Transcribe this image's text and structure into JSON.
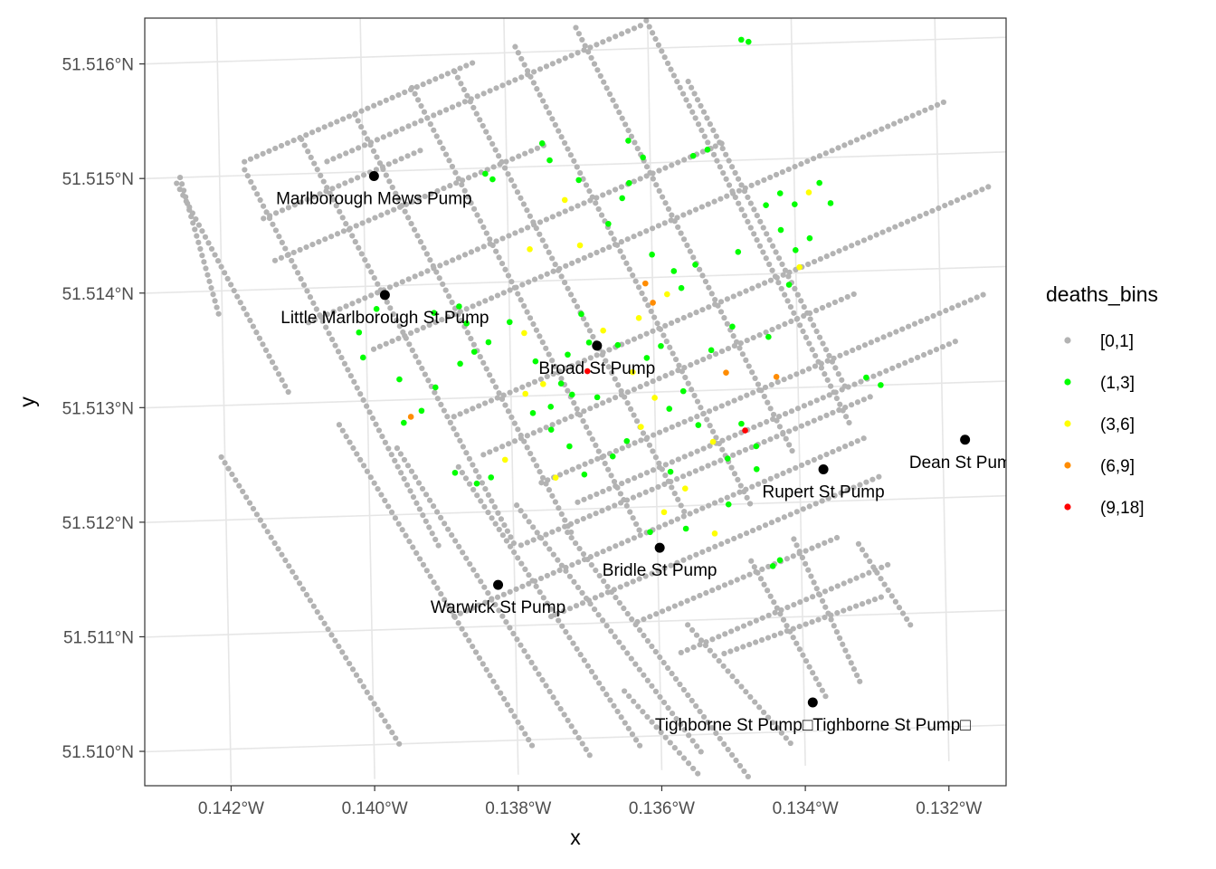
{
  "chart_data": {
    "type": "scatter",
    "xlabel": "x",
    "ylabel": "y",
    "xlim": [
      -0.143,
      -0.131
    ],
    "ylim": [
      51.5097,
      51.5164
    ],
    "grid": true,
    "legend": {
      "title": "deaths_bins",
      "placement": "right",
      "entries": [
        {
          "label": "[0,1]",
          "color": "#b3b3b3"
        },
        {
          "label": "(1,3]",
          "color": "#00ff00"
        },
        {
          "label": "(3,6]",
          "color": "#ffff00"
        },
        {
          "label": "(6,9]",
          "color": "#ff8c00"
        },
        {
          "label": "(9,18]",
          "color": "#ff0000"
        }
      ]
    },
    "x_ticks": [
      {
        "value": -0.142,
        "label": "0.142°W"
      },
      {
        "value": -0.14,
        "label": "0.140°W"
      },
      {
        "value": -0.138,
        "label": "0.138°W"
      },
      {
        "value": -0.136,
        "label": "0.136°W"
      },
      {
        "value": -0.134,
        "label": "0.134°W"
      },
      {
        "value": -0.132,
        "label": "0.132°W"
      }
    ],
    "y_ticks": [
      {
        "value": 51.51,
        "label": "51.510°N"
      },
      {
        "value": 51.511,
        "label": "51.511°N"
      },
      {
        "value": 51.512,
        "label": "51.512°N"
      },
      {
        "value": 51.513,
        "label": "51.513°N"
      },
      {
        "value": 51.514,
        "label": "51.514°N"
      },
      {
        "value": 51.515,
        "label": "51.515°N"
      },
      {
        "value": 51.516,
        "label": "51.516°N"
      }
    ],
    "pumps": [
      {
        "label": "Marlborough Mews Pump",
        "x": -0.13985,
        "y": 51.51496
      },
      {
        "label": "Little Marlborough St Pump",
        "x": -0.13973,
        "y": 51.51392
      },
      {
        "label": "Broad St Pump",
        "x": -0.13679,
        "y": 51.51342
      },
      {
        "label": "Dean St Pump",
        "x": -0.13169,
        "y": 51.5125
      },
      {
        "label": "Rupert St Pump",
        "x": -0.13367,
        "y": 51.51228
      },
      {
        "label": "Bridle St Pump",
        "x": -0.13597,
        "y": 51.51164
      },
      {
        "label": "Warwick St Pump",
        "x": -0.13823,
        "y": 51.51136
      },
      {
        "label": "Tighborne St Pump□Tighborne St Pump□",
        "x": -0.13388,
        "y": 51.51025
      }
    ],
    "streets": [
      [
        [
          -0.14165,
          51.51512
        ],
        [
          -0.13845,
          51.51592
        ]
      ],
      [
        [
          -0.1405,
          51.5151
        ],
        [
          -0.1361,
          51.5162
        ]
      ],
      [
        [
          -0.1414,
          51.51462
        ],
        [
          -0.1392,
          51.51517
        ]
      ],
      [
        [
          -0.14125,
          51.51425
        ],
        [
          -0.13748,
          51.51518
        ]
      ],
      [
        [
          -0.1408,
          51.5137
        ],
        [
          -0.135,
          51.51515
        ]
      ],
      [
        [
          -0.1399,
          51.51345
        ],
        [
          -0.1319,
          51.51545
        ]
      ],
      [
        [
          -0.1388,
          51.51284
        ],
        [
          -0.1313,
          51.5147
        ]
      ],
      [
        [
          -0.1384,
          51.5125
        ],
        [
          -0.1332,
          51.5138
        ]
      ],
      [
        [
          -0.1376,
          51.51224
        ],
        [
          -0.1314,
          51.51376
        ]
      ],
      [
        [
          -0.1371,
          51.51206
        ],
        [
          -0.1318,
          51.51336
        ]
      ],
      [
        [
          -0.1379,
          51.5117
        ],
        [
          -0.133,
          51.5129
        ]
      ],
      [
        [
          -0.13885,
          51.5111
        ],
        [
          -0.1331,
          51.51254
        ]
      ],
      [
        [
          -0.1375,
          51.51107
        ],
        [
          -0.1329,
          51.5122
        ]
      ],
      [
        [
          -0.1363,
          51.511
        ],
        [
          -0.1335,
          51.51168
        ]
      ],
      [
        [
          -0.1357,
          51.51072
        ],
        [
          -0.1328,
          51.51143
        ]
      ],
      [
        [
          -0.1351,
          51.5107
        ],
        [
          -0.1329,
          51.51115
        ]
      ],
      [
        [
          -0.14165,
          51.51505
        ],
        [
          -0.13905,
          51.51172
        ]
      ],
      [
        [
          -0.14085,
          51.5153
        ],
        [
          -0.138,
          51.51172
        ]
      ],
      [
        [
          -0.1401,
          51.5155
        ],
        [
          -0.1372,
          51.5118
        ]
      ],
      [
        [
          -0.1393,
          51.51572
        ],
        [
          -0.13625,
          51.5118
        ]
      ],
      [
        [
          -0.1387,
          51.51585
        ],
        [
          -0.13562,
          51.51195
        ]
      ],
      [
        [
          -0.13785,
          51.51605
        ],
        [
          -0.1347,
          51.512
        ]
      ],
      [
        [
          -0.137,
          51.5162
        ],
        [
          -0.1341,
          51.51245
        ]
      ],
      [
        [
          -0.1361,
          51.51635
        ],
        [
          -0.1333,
          51.51268
        ]
      ],
      [
        [
          -0.13545,
          51.5157
        ],
        [
          -0.13335,
          51.513
        ]
      ],
      [
        [
          -0.14205,
          51.51255
        ],
        [
          -0.13965,
          51.51
        ]
      ],
      [
        [
          -0.1404,
          51.5128
        ],
        [
          -0.1378,
          51.50995
        ]
      ],
      [
        [
          -0.1396,
          51.51258
        ],
        [
          -0.137,
          51.50985
        ]
      ],
      [
        [
          -0.13875,
          51.5124
        ],
        [
          -0.1363,
          51.50992
        ]
      ],
      [
        [
          -0.13795,
          51.51205
        ],
        [
          -0.13545,
          51.50985
        ]
      ],
      [
        [
          -0.13725,
          51.5118
        ],
        [
          -0.1348,
          51.50962
        ]
      ],
      [
        [
          -0.14255,
          51.515
        ],
        [
          -0.14205,
          51.5138
        ]
      ],
      [
        [
          -0.1426,
          51.51495
        ],
        [
          -0.1411,
          51.5131
        ]
      ],
      [
        [
          -0.1341,
          51.51168
        ],
        [
          -0.13322,
          51.51042
        ]
      ],
      [
        [
          -0.1356,
          51.51096
        ],
        [
          -0.1342,
          51.5099
        ]
      ],
      [
        [
          -0.1365,
          51.5104
        ],
        [
          -0.1355,
          51.50966
        ]
      ],
      [
        [
          -0.1347,
          51.5115
        ],
        [
          -0.1337,
          51.5103
        ]
      ],
      [
        [
          -0.1332,
          51.51162
        ],
        [
          -0.1325,
          51.5109
        ]
      ]
    ],
    "deaths": [
      {
        "x": -0.13693,
        "y": 51.5132,
        "bin": "(9,18]"
      },
      {
        "x": -0.13475,
        "y": 51.51264,
        "bin": "(9,18]"
      },
      {
        "x": -0.1387,
        "y": 51.5133,
        "bin": "(1,3]"
      },
      {
        "x": -0.1385,
        "y": 51.5134,
        "bin": "(1,3]"
      },
      {
        "x": -0.1383,
        "y": 51.51348,
        "bin": "(1,3]"
      },
      {
        "x": -0.13905,
        "y": 51.5131,
        "bin": "(1,3]"
      },
      {
        "x": -0.13925,
        "y": 51.5129,
        "bin": "(1,3]"
      },
      {
        "x": -0.1394,
        "y": 51.51285,
        "bin": "(6,9]"
      },
      {
        "x": -0.1395,
        "y": 51.5128,
        "bin": "(1,3]"
      },
      {
        "x": -0.138,
        "y": 51.51365,
        "bin": "(1,3]"
      },
      {
        "x": -0.1378,
        "y": 51.51355,
        "bin": "(3,6]"
      },
      {
        "x": -0.13765,
        "y": 51.5133,
        "bin": "(1,3]"
      },
      {
        "x": -0.13755,
        "y": 51.5131,
        "bin": "(3,6]"
      },
      {
        "x": -0.13745,
        "y": 51.5129,
        "bin": "(1,3]"
      },
      {
        "x": -0.1373,
        "y": 51.5131,
        "bin": "(1,3]"
      },
      {
        "x": -0.13715,
        "y": 51.513,
        "bin": "(1,3]"
      },
      {
        "x": -0.1372,
        "y": 51.51335,
        "bin": "(1,3]"
      },
      {
        "x": -0.1369,
        "y": 51.51345,
        "bin": "(1,3]"
      },
      {
        "x": -0.1367,
        "y": 51.51355,
        "bin": "(3,6]"
      },
      {
        "x": -0.1365,
        "y": 51.51342,
        "bin": "(1,3]"
      },
      {
        "x": -0.1363,
        "y": 51.51318,
        "bin": "(3,6]"
      },
      {
        "x": -0.1361,
        "y": 51.5133,
        "bin": "(1,3]"
      },
      {
        "x": -0.1359,
        "y": 51.5134,
        "bin": "(1,3]"
      },
      {
        "x": -0.136,
        "y": 51.51295,
        "bin": "(3,6]"
      },
      {
        "x": -0.1358,
        "y": 51.51285,
        "bin": "(1,3]"
      },
      {
        "x": -0.1356,
        "y": 51.513,
        "bin": "(1,3]"
      },
      {
        "x": -0.1362,
        "y": 51.5127,
        "bin": "(3,6]"
      },
      {
        "x": -0.1364,
        "y": 51.51258,
        "bin": "(1,3]"
      },
      {
        "x": -0.1366,
        "y": 51.51245,
        "bin": "(1,3]"
      },
      {
        "x": -0.137,
        "y": 51.5123,
        "bin": "(1,3]"
      },
      {
        "x": -0.1372,
        "y": 51.51255,
        "bin": "(1,3]"
      },
      {
        "x": -0.13745,
        "y": 51.5127,
        "bin": "(1,3]"
      },
      {
        "x": -0.1377,
        "y": 51.51285,
        "bin": "(1,3]"
      },
      {
        "x": -0.1381,
        "y": 51.51245,
        "bin": "(3,6]"
      },
      {
        "x": -0.1383,
        "y": 51.5123,
        "bin": "(1,3]"
      },
      {
        "x": -0.1385,
        "y": 51.51225,
        "bin": "(1,3]"
      },
      {
        "x": -0.1388,
        "y": 51.51235,
        "bin": "(1,3]"
      },
      {
        "x": -0.1354,
        "y": 51.5127,
        "bin": "(1,3]"
      },
      {
        "x": -0.1352,
        "y": 51.51255,
        "bin": "(3,6]"
      },
      {
        "x": -0.135,
        "y": 51.5124,
        "bin": "(1,3]"
      },
      {
        "x": -0.1346,
        "y": 51.5123,
        "bin": "(1,3]"
      },
      {
        "x": -0.1358,
        "y": 51.5123,
        "bin": "(1,3]"
      },
      {
        "x": -0.1356,
        "y": 51.51215,
        "bin": "(3,6]"
      },
      {
        "x": -0.135,
        "y": 51.512,
        "bin": "(1,3]"
      },
      {
        "x": -0.1352,
        "y": 51.51175,
        "bin": "(3,6]"
      },
      {
        "x": -0.1359,
        "y": 51.51195,
        "bin": "(3,6]"
      },
      {
        "x": -0.1361,
        "y": 51.51178,
        "bin": "(1,3]"
      },
      {
        "x": -0.135,
        "y": 51.51315,
        "bin": "(6,9]"
      },
      {
        "x": -0.1352,
        "y": 51.51335,
        "bin": "(1,3]"
      },
      {
        "x": -0.1349,
        "y": 51.51355,
        "bin": "(1,3]"
      },
      {
        "x": -0.1344,
        "y": 51.51345,
        "bin": "(1,3]"
      },
      {
        "x": -0.1343,
        "y": 51.5131,
        "bin": "(6,9]"
      },
      {
        "x": -0.1341,
        "y": 51.5139,
        "bin": "(1,3]"
      },
      {
        "x": -0.1342,
        "y": 51.51438,
        "bin": "(1,3]"
      },
      {
        "x": -0.1344,
        "y": 51.5146,
        "bin": "(1,3]"
      },
      {
        "x": -0.1342,
        "y": 51.5147,
        "bin": "(1,3]"
      },
      {
        "x": -0.134,
        "y": 51.5146,
        "bin": "(1,3]"
      },
      {
        "x": -0.1338,
        "y": 51.5147,
        "bin": "(3,6]"
      },
      {
        "x": -0.13365,
        "y": 51.51478,
        "bin": "(1,3]"
      },
      {
        "x": -0.134,
        "y": 51.5142,
        "bin": "(1,3]"
      },
      {
        "x": -0.1338,
        "y": 51.5143,
        "bin": "(1,3]"
      },
      {
        "x": -0.1335,
        "y": 51.5146,
        "bin": "(1,3]"
      },
      {
        "x": -0.13395,
        "y": 51.51405,
        "bin": "(3,6]"
      },
      {
        "x": -0.1361,
        "y": 51.51395,
        "bin": "(6,9]"
      },
      {
        "x": -0.136,
        "y": 51.51378,
        "bin": "(6,9]"
      },
      {
        "x": -0.1362,
        "y": 51.51365,
        "bin": "(3,6]"
      },
      {
        "x": -0.1358,
        "y": 51.51385,
        "bin": "(3,6]"
      },
      {
        "x": -0.1356,
        "y": 51.5139,
        "bin": "(1,3]"
      },
      {
        "x": -0.1357,
        "y": 51.51405,
        "bin": "(1,3]"
      },
      {
        "x": -0.1354,
        "y": 51.5141,
        "bin": "(1,3]"
      },
      {
        "x": -0.136,
        "y": 51.5142,
        "bin": "(1,3]"
      },
      {
        "x": -0.137,
        "y": 51.5143,
        "bin": "(3,6]"
      },
      {
        "x": -0.1377,
        "y": 51.51428,
        "bin": "(3,6]"
      },
      {
        "x": -0.1366,
        "y": 51.51448,
        "bin": "(1,3]"
      },
      {
        "x": -0.1364,
        "y": 51.5147,
        "bin": "(1,3]"
      },
      {
        "x": -0.1363,
        "y": 51.51483,
        "bin": "(1,3]"
      },
      {
        "x": -0.137,
        "y": 51.51487,
        "bin": "(1,3]"
      },
      {
        "x": -0.1372,
        "y": 51.5147,
        "bin": "(3,6]"
      },
      {
        "x": -0.1374,
        "y": 51.51505,
        "bin": "(1,3]"
      },
      {
        "x": -0.1375,
        "y": 51.5152,
        "bin": "(1,3]"
      },
      {
        "x": -0.1352,
        "y": 51.5151,
        "bin": "(1,3]"
      },
      {
        "x": -0.1354,
        "y": 51.51505,
        "bin": "(1,3]"
      },
      {
        "x": -0.1383,
        "y": 51.51495,
        "bin": "(1,3]"
      },
      {
        "x": -0.1382,
        "y": 51.5149,
        "bin": "(1,3]"
      },
      {
        "x": -0.1386,
        "y": 51.51365,
        "bin": "(1,3]"
      },
      {
        "x": -0.1387,
        "y": 51.5138,
        "bin": "(1,3]"
      },
      {
        "x": -0.1378,
        "y": 51.51302,
        "bin": "(3,6]"
      },
      {
        "x": -0.1368,
        "y": 51.51297,
        "bin": "(1,3]"
      },
      {
        "x": -0.13905,
        "y": 51.51375,
        "bin": "(1,3]"
      },
      {
        "x": -0.13985,
        "y": 51.5138,
        "bin": "(1,3]"
      },
      {
        "x": -0.1401,
        "y": 51.5136,
        "bin": "(1,3]"
      },
      {
        "x": -0.14005,
        "y": 51.51338,
        "bin": "(1,3]"
      },
      {
        "x": -0.13955,
        "y": 51.51318,
        "bin": "(1,3]"
      },
      {
        "x": -0.13285,
        "y": 51.513,
        "bin": "(1,3]"
      },
      {
        "x": -0.13305,
        "y": 51.51307,
        "bin": "(1,3]"
      },
      {
        "x": -0.1348,
        "y": 51.5127,
        "bin": "(1,3]"
      },
      {
        "x": -0.1346,
        "y": 51.5125,
        "bin": "(1,3]"
      },
      {
        "x": -0.1374,
        "y": 51.51228,
        "bin": "(3,6]"
      },
      {
        "x": -0.1343,
        "y": 51.5115,
        "bin": "(1,3]"
      },
      {
        "x": -0.1344,
        "y": 51.51145,
        "bin": "(1,3]"
      },
      {
        "x": -0.1347,
        "y": 51.51605,
        "bin": "(1,3]"
      },
      {
        "x": -0.1346,
        "y": 51.51603,
        "bin": "(1,3]"
      },
      {
        "x": -0.1363,
        "y": 51.5152,
        "bin": "(1,3]"
      },
      {
        "x": -0.1361,
        "y": 51.51505,
        "bin": "(1,3]"
      },
      {
        "x": -0.1356,
        "y": 51.5118,
        "bin": "(1,3]"
      },
      {
        "x": -0.1348,
        "y": 51.5142,
        "bin": "(1,3]"
      },
      {
        "x": -0.137,
        "y": 51.5137,
        "bin": "(1,3]"
      }
    ]
  }
}
